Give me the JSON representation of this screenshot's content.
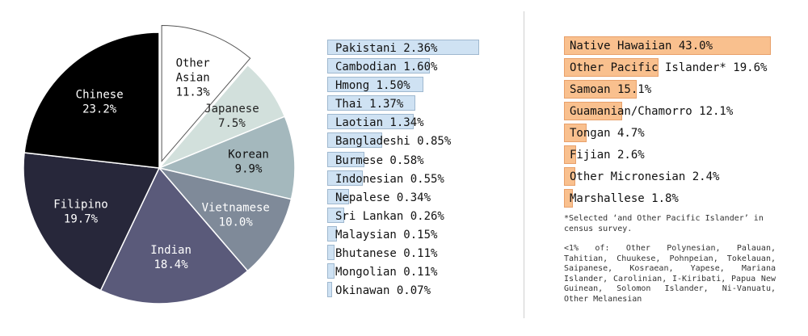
{
  "chart_data": [
    {
      "type": "pie",
      "slices": [
        {
          "label": "Other\nAsian",
          "value": 11.3,
          "display": "11.3%",
          "color": "#ffffff",
          "text_color": "#111111",
          "exploded": true
        },
        {
          "label": "Japanese",
          "value": 7.5,
          "display": "7.5%",
          "color": "#d2e0dc",
          "text_color": "#222222"
        },
        {
          "label": "Korean",
          "value": 9.9,
          "display": "9.9%",
          "color": "#a4b8bd",
          "text_color": "#111111"
        },
        {
          "label": "Vietnamese",
          "value": 10.0,
          "display": "10.0%",
          "color": "#7f8a99",
          "text_color": "#ffffff"
        },
        {
          "label": "Indian",
          "value": 18.4,
          "display": "18.4%",
          "color": "#5a5a7a",
          "text_color": "#ffffff"
        },
        {
          "label": "Filipino",
          "value": 19.7,
          "display": "19.7%",
          "color": "#27273a",
          "text_color": "#ffffff"
        },
        {
          "label": "Chinese",
          "value": 23.2,
          "display": "23.2%",
          "color": "#000000",
          "text_color": "#ffffff"
        }
      ]
    },
    {
      "type": "bar",
      "orientation": "horizontal",
      "bar_color": "#cfe2f3",
      "max_value": 2.36,
      "items": [
        {
          "label": "Pakistani 2.36%",
          "value": 2.36
        },
        {
          "label": "Cambodian 1.60%",
          "value": 1.6
        },
        {
          "label": "Hmong 1.50%",
          "value": 1.5
        },
        {
          "label": "Thai 1.37%",
          "value": 1.37
        },
        {
          "label": "Laotian 1.34%",
          "value": 1.34
        },
        {
          "label": "Bangladeshi 0.85%",
          "value": 0.85
        },
        {
          "label": "Burmese 0.58%",
          "value": 0.58
        },
        {
          "label": "Indonesian 0.55%",
          "value": 0.55
        },
        {
          "label": "Nepalese 0.34%",
          "value": 0.34
        },
        {
          "label": "Sri Lankan 0.26%",
          "value": 0.26
        },
        {
          "label": "Malaysian 0.15%",
          "value": 0.15
        },
        {
          "label": "Bhutanese 0.11%",
          "value": 0.11
        },
        {
          "label": "Mongolian 0.11%",
          "value": 0.11
        },
        {
          "label": "Okinawan 0.07%",
          "value": 0.07
        }
      ]
    },
    {
      "type": "bar",
      "orientation": "horizontal",
      "bar_color": "#f9c08e",
      "max_value": 43.0,
      "items": [
        {
          "label": "Native Hawaiian 43.0%",
          "value": 43.0
        },
        {
          "label": "Other Pacific Islander* 19.6%",
          "value": 19.6
        },
        {
          "label": "Samoan 15.1%",
          "value": 15.1
        },
        {
          "label": "Guamanian/Chamorro 12.1%",
          "value": 12.1
        },
        {
          "label": "Tongan 4.7%",
          "value": 4.7
        },
        {
          "label": "Fijian 2.6%",
          "value": 2.6
        },
        {
          "label": "Other Micronesian 2.4%",
          "value": 2.4
        },
        {
          "label": "Marshallese 1.8%",
          "value": 1.8
        }
      ]
    }
  ],
  "notes": {
    "note1": "*Selected ‘and Other Pacific Islander’ in census survey.",
    "note2": "<1% of: Other Polynesian, Palauan, Tahitian, Chuukese, Pohnpeian, Tokelauan, Saipanese, Kosraean, Yapese, Mariana Islander, Carolinian, I-Kiribati, Papua New Guinean, Solomon Islander, Ni-Vanuatu, Other Melanesian"
  }
}
